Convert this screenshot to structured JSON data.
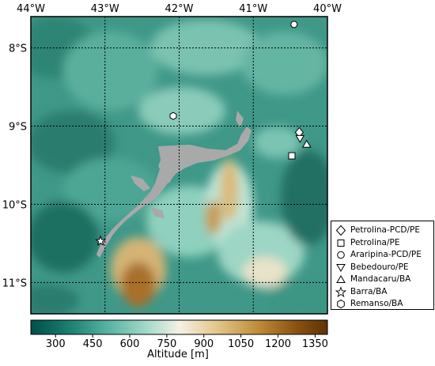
{
  "map": {
    "lon_ticks": [
      "44°W",
      "43°W",
      "42°W",
      "41°W",
      "40°W"
    ],
    "lat_ticks": [
      "8°S",
      "9°S",
      "10°S",
      "11°S"
    ],
    "lon_range": [
      -44,
      -40
    ],
    "lat_range": [
      -11.4,
      -7.6
    ]
  },
  "stations": [
    {
      "name": "Petrolina-PCD/PE",
      "symbol": "diamond",
      "lon": -40.38,
      "lat": -9.08
    },
    {
      "name": "Petrolina/PE",
      "symbol": "square",
      "lon": -40.48,
      "lat": -9.38
    },
    {
      "name": "Araripina-PCD/PE",
      "symbol": "circle",
      "lon": -40.45,
      "lat": -7.7
    },
    {
      "name": "Bebedouro/PE",
      "symbol": "triangle-down",
      "lon": -40.37,
      "lat": -9.16
    },
    {
      "name": "Mandacaru/BA",
      "symbol": "triangle-up",
      "lon": -40.28,
      "lat": -9.23
    },
    {
      "name": "Barra/BA",
      "symbol": "star",
      "lon": -43.06,
      "lat": -10.47
    },
    {
      "name": "Remanso/BA",
      "symbol": "hexagon",
      "lon": -42.08,
      "lat": -8.87
    }
  ],
  "colorbar": {
    "title": "Altitude [m]",
    "ticks": [
      "300",
      "450",
      "600",
      "750",
      "900",
      "1050",
      "1200",
      "1350"
    ],
    "range": [
      200,
      1400
    ],
    "colors": [
      "#004f4a",
      "#1b7f72",
      "#58b3a1",
      "#a8dccd",
      "#f4f1e4",
      "#e6c98e",
      "#c08f3c",
      "#8c5412",
      "#5e3306"
    ]
  },
  "colors": {
    "reservoir": "#a9a9a9",
    "grid": "#000000"
  }
}
